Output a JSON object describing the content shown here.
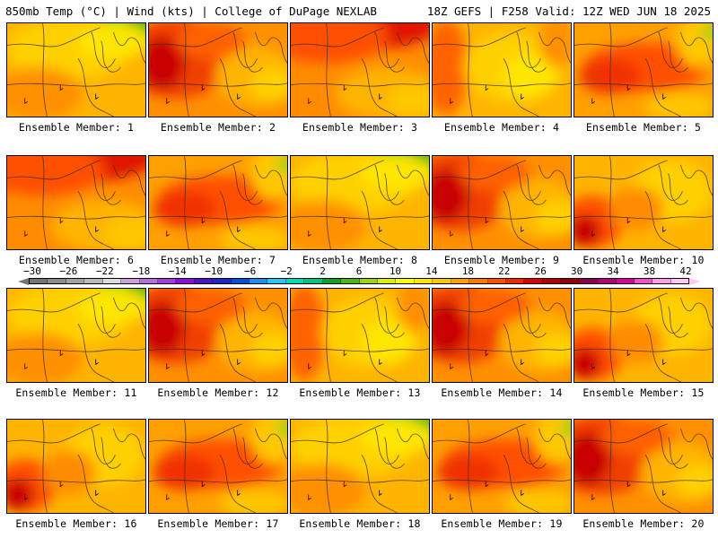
{
  "header": {
    "left": "850mb Temp (°C) | Wind (kts) | College of DuPage NEXLAB",
    "right": "18Z GEFS | F258 Valid: 12Z WED JUN 18 2025"
  },
  "colorbar": {
    "tick_labels": [
      "-30",
      "-26",
      "-22",
      "-18",
      "-14",
      "-10",
      "-6",
      "-2",
      "2",
      "6",
      "10",
      "14",
      "18",
      "22",
      "26",
      "30",
      "34",
      "38",
      "42"
    ],
    "colors": [
      "#747474",
      "#8c8c8c",
      "#a3a3a3",
      "#bbbbbb",
      "#dcdcdc",
      "#c8a0dc",
      "#b470dc",
      "#a040dc",
      "#8c10dc",
      "#5014c8",
      "#1e28c8",
      "#0050dc",
      "#1e8cf0",
      "#28c8f0",
      "#00dcb4",
      "#00c878",
      "#14a028",
      "#50b414",
      "#a0d214",
      "#dcf000",
      "#ffff00",
      "#ffe600",
      "#ffc800",
      "#ffa000",
      "#ff7800",
      "#ff5000",
      "#f02800",
      "#dc0000",
      "#b40000",
      "#960000",
      "#8c0050",
      "#b40078",
      "#dc00a0",
      "#f050c8",
      "#ffa0e6",
      "#ffc8f0"
    ]
  },
  "panels": [
    {
      "label": "Ensemble Member: 1",
      "style": "g-tr"
    },
    {
      "label": "Ensemble Member: 2",
      "style": "hot-w"
    },
    {
      "label": "Ensemble Member: 3",
      "style": "hot-n"
    },
    {
      "label": "Ensemble Member: 4",
      "style": "warm-w"
    },
    {
      "label": "Ensemble Member: 5",
      "style": "warm-c"
    },
    {
      "label": "Ensemble Member: 6",
      "style": "hot-n"
    },
    {
      "label": "Ensemble Member: 7",
      "style": "warm-c"
    },
    {
      "label": "Ensemble Member: 8",
      "style": "g-tr"
    },
    {
      "label": "Ensemble Member: 9",
      "style": "hot-w"
    },
    {
      "label": "Ensemble Member: 10",
      "style": "warm-sw"
    },
    {
      "label": "Ensemble Member: 11",
      "style": "g-tr"
    },
    {
      "label": "Ensemble Member: 12",
      "style": "hot-w"
    },
    {
      "label": "Ensemble Member: 13",
      "style": "warm-w"
    },
    {
      "label": "Ensemble Member: 14",
      "style": "hot-w"
    },
    {
      "label": "Ensemble Member: 15",
      "style": "warm-sw"
    },
    {
      "label": "Ensemble Member: 16",
      "style": "warm-sw"
    },
    {
      "label": "Ensemble Member: 17",
      "style": "warm-c"
    },
    {
      "label": "Ensemble Member: 18",
      "style": "g-tr"
    },
    {
      "label": "Ensemble Member: 19",
      "style": "warm-c"
    },
    {
      "label": "Ensemble Member: 20",
      "style": "hot-w"
    }
  ]
}
